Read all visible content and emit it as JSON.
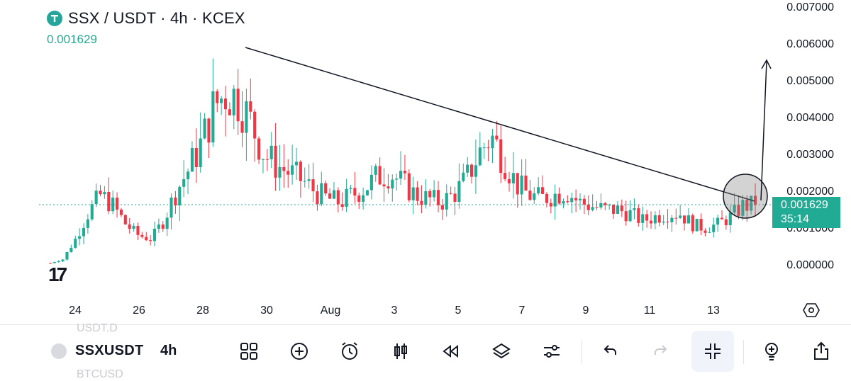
{
  "header": {
    "title": "SSX / USDT · 4h · KCEX",
    "last_price": "0.001629"
  },
  "price_badge": {
    "price": "0.001629",
    "countdown": "35:14"
  },
  "y_axis": [
    "0.007000",
    "0.006000",
    "0.005000",
    "0.004000",
    "0.003000",
    "0.002000",
    "0.001000",
    "0.000000"
  ],
  "x_axis": [
    "24",
    "26",
    "28",
    "30",
    "Aug",
    "3",
    "5",
    "7",
    "9",
    "11",
    "13"
  ],
  "toolbar": {
    "symbol": "SSXUSDT",
    "interval": "4h",
    "ghost_above": "USDT.D",
    "ghost_below": "BTCUSD",
    "icons": [
      "grid-icon",
      "add-circle-icon",
      "alarm-icon",
      "candles-icon",
      "replay-icon",
      "layers-icon",
      "sliders-icon",
      "undo-icon",
      "redo-icon",
      "collapse-icon",
      "bulb-plus-icon",
      "share-icon"
    ]
  },
  "colors": {
    "up": "#22ab94",
    "down": "#f23645",
    "drawing": "#131722"
  },
  "chart_data": {
    "type": "candlestick",
    "title": "SSX / USDT · 4h · KCEX",
    "ylim": [
      0,
      0.007
    ],
    "last_price": 0.001629,
    "x_ticks": [
      "24",
      "26",
      "28",
      "30",
      "Aug",
      "3",
      "5",
      "7",
      "9",
      "11",
      "13"
    ],
    "close_trend": [
      5e-05,
      0.00015,
      0.0007,
      0.0014,
      0.0019,
      0.0016,
      0.0011,
      0.0008,
      0.0007,
      0.0012,
      0.002,
      0.0026,
      0.0033,
      0.0043,
      0.0047,
      0.0045,
      0.0038,
      0.003,
      0.0027,
      0.0025,
      0.0023,
      0.002,
      0.0018,
      0.0017,
      0.0019,
      0.0021,
      0.0024,
      0.0025,
      0.0022,
      0.0019,
      0.0018,
      0.0017,
      0.0019,
      0.0023,
      0.003,
      0.0035,
      0.0029,
      0.0022,
      0.0019,
      0.0018,
      0.0019,
      0.002,
      0.0017,
      0.0016,
      0.0015,
      0.0015,
      0.0014,
      0.0012,
      0.0013,
      0.0014,
      0.0014,
      0.0011,
      0.001,
      0.0011,
      0.0013,
      0.0016,
      0.00163
    ],
    "drawings": [
      {
        "type": "trendline",
        "from": [
          "29",
          0.0059
        ],
        "to": [
          "14",
          0.0017
        ]
      },
      {
        "type": "circle",
        "center": [
          "14",
          0.0018
        ]
      },
      {
        "type": "arrow",
        "direction": "up"
      }
    ]
  }
}
